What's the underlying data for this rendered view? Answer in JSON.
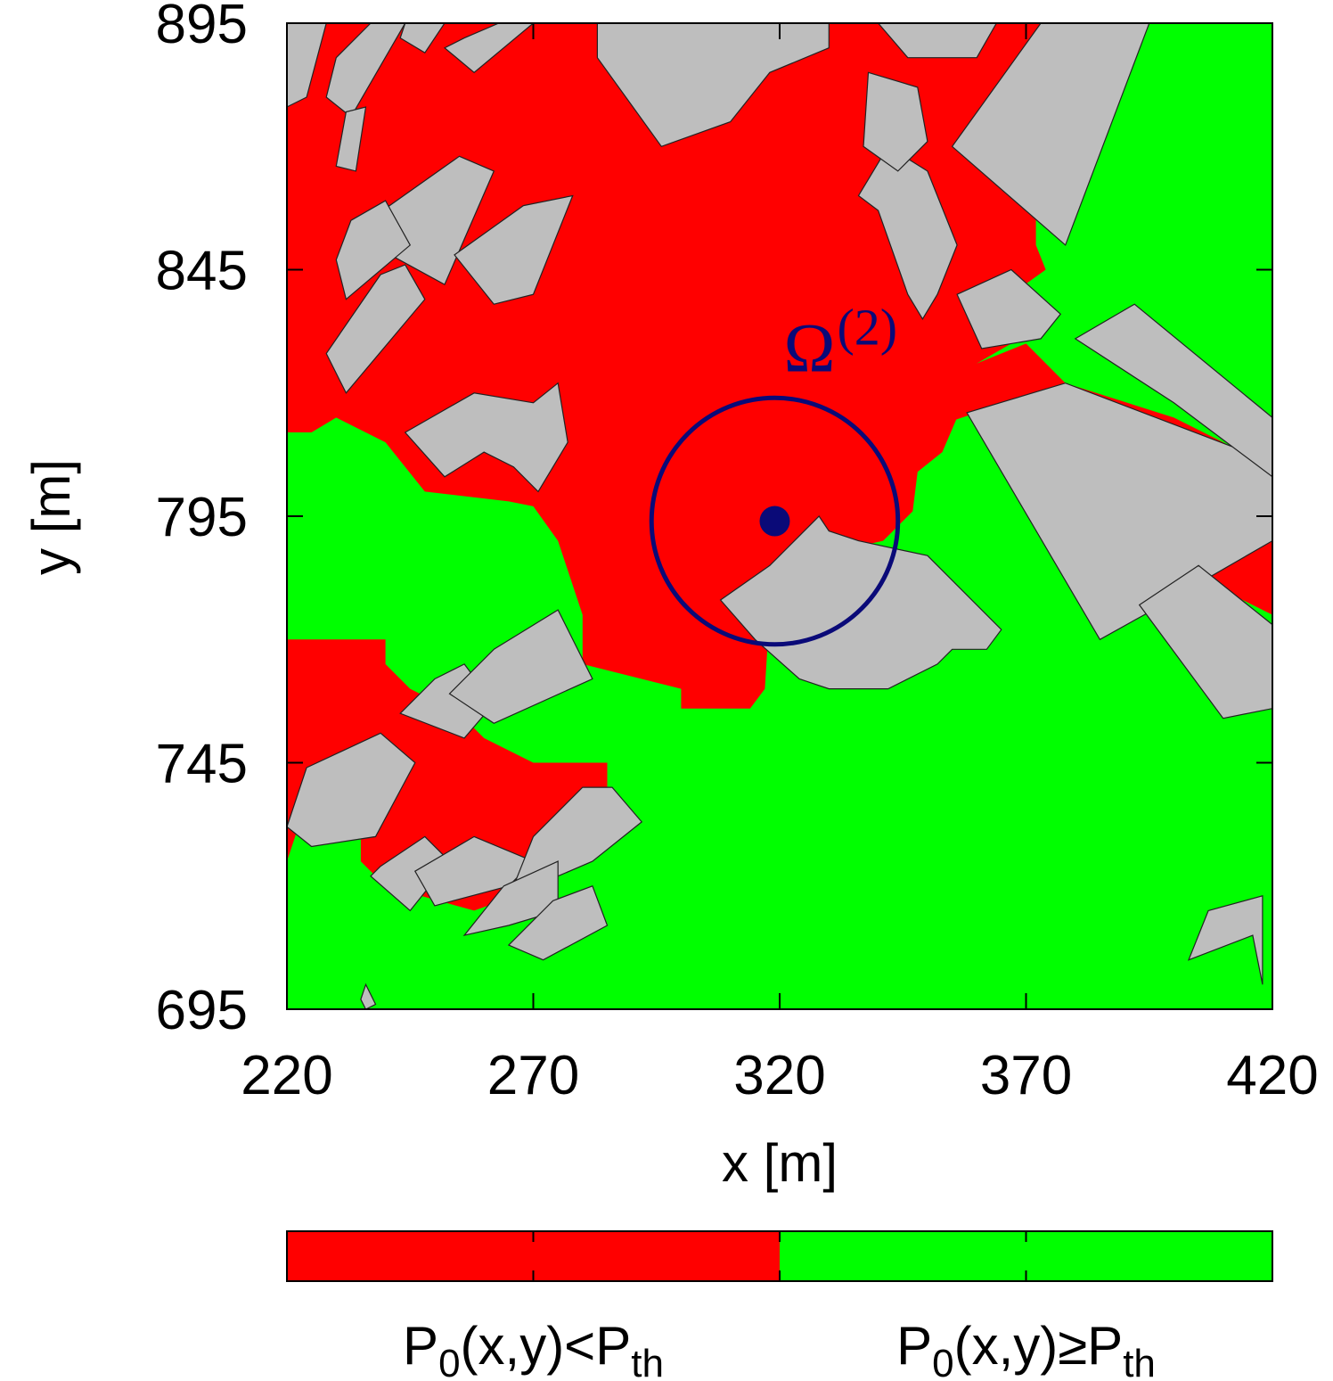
{
  "chart_data": {
    "type": "heatmap",
    "xlabel": "x [m]",
    "ylabel": "y [m]",
    "xlim": [
      220,
      420
    ],
    "ylim": [
      695,
      895
    ],
    "x_ticks": [
      220,
      270,
      320,
      370,
      420
    ],
    "y_ticks": [
      695,
      745,
      795,
      845,
      895
    ],
    "colors": {
      "below": "#ff0000",
      "above": "#00ff00",
      "building": "#bebebe",
      "marker": "#0a0a78"
    },
    "legend": {
      "placement": "bottom",
      "entries": [
        {
          "base": "P",
          "sub1": "0",
          "mid": "(x,y)<P",
          "sub2": "th",
          "color": "#ff0000"
        },
        {
          "base": "P",
          "sub1": "0",
          "mid": "(x,y)≥P",
          "sub2": "th",
          "color": "#00ff00"
        }
      ]
    },
    "region": {
      "symbol": "Ω",
      "superscript": "(2)",
      "center": [
        319,
        794
      ],
      "radius": 25
    },
    "red_regions": [
      [
        [
          220,
          895
        ],
        [
          380,
          895
        ],
        [
          380,
          880
        ],
        [
          376,
          868
        ],
        [
          372,
          858
        ],
        [
          372,
          850
        ],
        [
          374,
          845
        ],
        [
          367,
          840
        ],
        [
          367,
          830
        ],
        [
          360,
          826
        ],
        [
          358,
          818
        ],
        [
          356,
          815
        ],
        [
          353,
          808
        ],
        [
          348,
          804
        ],
        [
          347,
          796
        ],
        [
          343,
          792
        ],
        [
          341,
          790
        ],
        [
          332,
          788
        ],
        [
          328,
          784
        ],
        [
          324,
          781
        ],
        [
          318,
          776
        ],
        [
          317,
          760
        ],
        [
          314,
          756
        ],
        [
          300,
          756
        ],
        [
          300,
          760
        ],
        [
          280,
          765
        ],
        [
          280,
          775
        ],
        [
          275,
          790
        ],
        [
          270,
          797
        ],
        [
          265,
          798
        ],
        [
          248,
          800
        ],
        [
          240,
          810
        ],
        [
          230,
          815
        ],
        [
          225,
          812
        ],
        [
          220,
          812
        ]
      ],
      [
        [
          345,
          820
        ],
        [
          360,
          826
        ],
        [
          370,
          830
        ],
        [
          378,
          822
        ],
        [
          400,
          815
        ],
        [
          420,
          805
        ],
        [
          420,
          775
        ],
        [
          400,
          785
        ],
        [
          385,
          797
        ],
        [
          370,
          810
        ],
        [
          360,
          816
        ],
        [
          348,
          812
        ]
      ],
      [
        [
          220,
          770
        ],
        [
          240,
          770
        ],
        [
          240,
          765
        ],
        [
          245,
          760
        ],
        [
          255,
          755
        ],
        [
          260,
          750
        ],
        [
          270,
          745
        ],
        [
          285,
          745
        ],
        [
          285,
          740
        ],
        [
          280,
          730
        ],
        [
          272,
          720
        ],
        [
          258,
          715
        ],
        [
          240,
          720
        ],
        [
          235,
          725
        ],
        [
          235,
          735
        ],
        [
          225,
          740
        ],
        [
          220,
          725
        ]
      ]
    ],
    "buildings": [
      [
        [
          220,
          895
        ],
        [
          228,
          895
        ],
        [
          224,
          880
        ],
        [
          220,
          878
        ]
      ],
      [
        [
          230,
          888
        ],
        [
          237,
          895
        ],
        [
          244,
          895
        ],
        [
          233,
          876
        ],
        [
          228,
          880
        ]
      ],
      [
        [
          244,
          895
        ],
        [
          252,
          895
        ],
        [
          248,
          889
        ],
        [
          243,
          892
        ]
      ],
      [
        [
          256,
          892
        ],
        [
          263,
          895
        ],
        [
          270,
          895
        ],
        [
          258,
          885
        ],
        [
          252,
          890
        ]
      ],
      [
        [
          283,
          895
        ],
        [
          330,
          895
        ],
        [
          330,
          890
        ],
        [
          318,
          885
        ],
        [
          310,
          875
        ],
        [
          296,
          870
        ],
        [
          283,
          888
        ]
      ],
      [
        [
          340,
          895
        ],
        [
          364,
          895
        ],
        [
          360,
          888
        ],
        [
          346,
          888
        ]
      ],
      [
        [
          373,
          895
        ],
        [
          395,
          895
        ],
        [
          378,
          850
        ],
        [
          355,
          870
        ]
      ],
      [
        [
          232,
          877
        ],
        [
          236,
          878
        ],
        [
          234,
          865
        ],
        [
          230,
          866
        ]
      ],
      [
        [
          255,
          868
        ],
        [
          262,
          865
        ],
        [
          252,
          842
        ],
        [
          241,
          848
        ],
        [
          238,
          856
        ]
      ],
      [
        [
          233,
          855
        ],
        [
          240,
          859
        ],
        [
          245,
          850
        ],
        [
          232,
          839
        ],
        [
          230,
          847
        ]
      ],
      [
        [
          239,
          844
        ],
        [
          244,
          846
        ],
        [
          248,
          839
        ],
        [
          232,
          820
        ],
        [
          228,
          828
        ]
      ],
      [
        [
          268,
          858
        ],
        [
          278,
          860
        ],
        [
          270,
          840
        ],
        [
          262,
          838
        ],
        [
          254,
          848
        ]
      ],
      [
        [
          270,
          818
        ],
        [
          275,
          822
        ],
        [
          277,
          810
        ],
        [
          271,
          800
        ],
        [
          266,
          805
        ],
        [
          260,
          808
        ],
        [
          252,
          803
        ],
        [
          244,
          812
        ],
        [
          258,
          820
        ]
      ],
      [
        [
          323,
          790
        ],
        [
          328,
          795
        ],
        [
          330,
          792
        ],
        [
          336,
          790
        ],
        [
          350,
          787
        ],
        [
          365,
          772
        ],
        [
          362,
          768
        ],
        [
          355,
          768
        ],
        [
          352,
          765
        ],
        [
          342,
          760
        ],
        [
          330,
          760
        ],
        [
          324,
          762
        ],
        [
          315,
          770
        ],
        [
          308,
          778
        ],
        [
          318,
          785
        ]
      ],
      [
        [
          358,
          816
        ],
        [
          378,
          822
        ],
        [
          420,
          806
        ],
        [
          420,
          790
        ],
        [
          394,
          775
        ],
        [
          385,
          770
        ]
      ],
      [
        [
          367,
          845
        ],
        [
          377,
          836
        ],
        [
          373,
          831
        ],
        [
          361,
          829
        ],
        [
          356,
          840
        ]
      ],
      [
        [
          380,
          831
        ],
        [
          392,
          838
        ],
        [
          420,
          815
        ],
        [
          420,
          803
        ],
        [
          400,
          818
        ]
      ],
      [
        [
          393,
          777
        ],
        [
          405,
          785
        ],
        [
          420,
          773
        ],
        [
          420,
          756
        ],
        [
          410,
          754
        ]
      ],
      [
        [
          342,
          870
        ],
        [
          350,
          865
        ],
        [
          356,
          850
        ],
        [
          352,
          840
        ],
        [
          349,
          835
        ],
        [
          346,
          840
        ],
        [
          340,
          857
        ],
        [
          336,
          860
        ]
      ],
      [
        [
          338,
          885
        ],
        [
          348,
          882
        ],
        [
          350,
          871
        ],
        [
          344,
          865
        ],
        [
          337,
          870
        ]
      ],
      [
        [
          224,
          744
        ],
        [
          239,
          751
        ],
        [
          246,
          745
        ],
        [
          238,
          730
        ],
        [
          225,
          728
        ],
        [
          220,
          732
        ]
      ],
      [
        [
          250,
          762
        ],
        [
          256,
          765
        ],
        [
          262,
          757
        ],
        [
          256,
          750
        ],
        [
          243,
          755
        ]
      ],
      [
        [
          262,
          768
        ],
        [
          275,
          776
        ],
        [
          282,
          762
        ],
        [
          262,
          753
        ],
        [
          253,
          759
        ]
      ],
      [
        [
          239,
          724
        ],
        [
          248,
          730
        ],
        [
          253,
          725
        ],
        [
          245,
          715
        ],
        [
          237,
          722
        ]
      ],
      [
        [
          246,
          723
        ],
        [
          258,
          730
        ],
        [
          270,
          725
        ],
        [
          265,
          720
        ],
        [
          250,
          716
        ]
      ],
      [
        [
          270,
          730
        ],
        [
          280,
          740
        ],
        [
          286,
          740
        ],
        [
          292,
          733
        ],
        [
          282,
          725
        ],
        [
          275,
          722
        ],
        [
          266,
          720
        ]
      ],
      [
        [
          264,
          720
        ],
        [
          275,
          725
        ],
        [
          275,
          715
        ],
        [
          265,
          712
        ],
        [
          256,
          710
        ]
      ],
      [
        [
          274,
          717
        ],
        [
          282,
          720
        ],
        [
          285,
          712
        ],
        [
          272,
          705
        ],
        [
          265,
          708
        ]
      ],
      [
        [
          407,
          715
        ],
        [
          418,
          718
        ],
        [
          418,
          700
        ],
        [
          416,
          710
        ],
        [
          403,
          705
        ]
      ],
      [
        [
          236,
          700
        ],
        [
          238,
          696
        ],
        [
          236,
          695
        ],
        [
          235,
          697
        ]
      ]
    ]
  }
}
